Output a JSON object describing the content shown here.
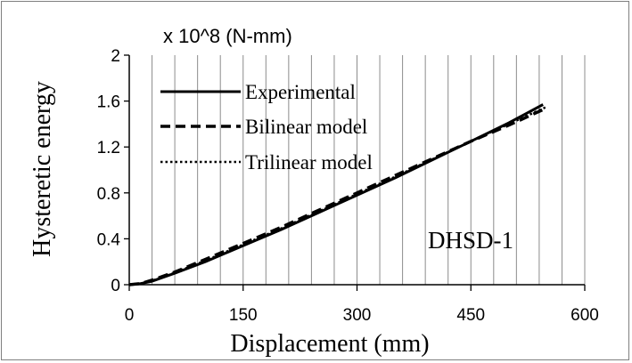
{
  "chart_data": {
    "type": "line",
    "unit_label": "x 10^8  (N-mm)",
    "xlabel": "Displacement  (mm)",
    "ylabel": "Hysteretic  energy",
    "xlim": [
      0,
      600
    ],
    "ylim": [
      0,
      2
    ],
    "x_ticks": [
      "0",
      "150",
      "300",
      "450",
      "600"
    ],
    "y_ticks": [
      "0",
      "0.4",
      "0.8",
      "1.2",
      "1.6",
      "2"
    ],
    "x_minor_step": 30,
    "grid": true,
    "legend_position": "top-left",
    "annotation": "DHSD-1",
    "series": [
      {
        "name": "Experimental",
        "style": "solid",
        "x": [
          0,
          15,
          30,
          60,
          100,
          150,
          200,
          250,
          300,
          350,
          400,
          450,
          500,
          545
        ],
        "y": [
          0,
          0.01,
          0.03,
          0.1,
          0.2,
          0.34,
          0.48,
          0.63,
          0.78,
          0.93,
          1.09,
          1.25,
          1.41,
          1.57
        ]
      },
      {
        "name": "Bilinear model",
        "style": "dashed",
        "x": [
          0,
          15,
          30,
          60,
          100,
          150,
          200,
          250,
          300,
          350,
          400,
          450,
          500,
          550
        ],
        "y": [
          0,
          0.01,
          0.04,
          0.11,
          0.22,
          0.36,
          0.5,
          0.65,
          0.8,
          0.95,
          1.1,
          1.25,
          1.39,
          1.54
        ]
      },
      {
        "name": "Trilinear model",
        "style": "dotted",
        "x": [
          0,
          15,
          30,
          60,
          100,
          150,
          200,
          250,
          300,
          350,
          400,
          450,
          500,
          550
        ],
        "y": [
          0,
          0.01,
          0.035,
          0.105,
          0.21,
          0.35,
          0.49,
          0.64,
          0.79,
          0.94,
          1.095,
          1.25,
          1.4,
          1.55
        ]
      }
    ]
  }
}
